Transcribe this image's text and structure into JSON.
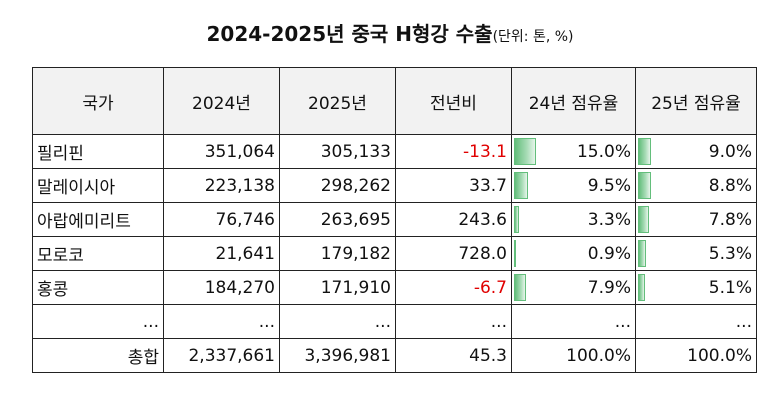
{
  "title": {
    "main": "2024-2025년 중국 H형강 수출",
    "unit": "(단위: 톤, %)"
  },
  "headers": [
    "국가",
    "2024년",
    "2025년",
    "전년비",
    "24년 점유율",
    "25년 점유율"
  ],
  "bar_color": "#63be7b",
  "negative_color": "#e00000",
  "header_bg": "#f2f2f2",
  "rows": [
    {
      "country": "필리핀",
      "y2024": "351,064",
      "y2025": "305,133",
      "yoy": "-13.1",
      "yoy_negative": true,
      "share24": "15.0%",
      "share24_value": 15.0,
      "share25": "9.0%",
      "share25_value": 9.0
    },
    {
      "country": "말레이시아",
      "y2024": "223,138",
      "y2025": "298,262",
      "yoy": "33.7",
      "yoy_negative": false,
      "share24": "9.5%",
      "share24_value": 9.5,
      "share25": "8.8%",
      "share25_value": 8.8
    },
    {
      "country": "아랍에미리트",
      "y2024": "76,746",
      "y2025": "263,695",
      "yoy": "243.6",
      "yoy_negative": false,
      "share24": "3.3%",
      "share24_value": 3.3,
      "share25": "7.8%",
      "share25_value": 7.8
    },
    {
      "country": "모로코",
      "y2024": "21,641",
      "y2025": "179,182",
      "yoy": "728.0",
      "yoy_negative": false,
      "share24": "0.9%",
      "share24_value": 0.9,
      "share25": "5.3%",
      "share25_value": 5.3
    },
    {
      "country": "홍콩",
      "y2024": "184,270",
      "y2025": "171,910",
      "yoy": "-6.7",
      "yoy_negative": true,
      "share24": "7.9%",
      "share24_value": 7.9,
      "share25": "5.1%",
      "share25_value": 5.1
    }
  ],
  "ellipsis_row": {
    "country": "...",
    "y2024": "...",
    "y2025": "...",
    "yoy": "...",
    "share24": "...",
    "share25": "..."
  },
  "total_row": {
    "label": "총합",
    "y2024": "2,337,661",
    "y2025": "3,396,981",
    "yoy": "45.3",
    "share24": "100.0%",
    "share25": "100.0%"
  }
}
